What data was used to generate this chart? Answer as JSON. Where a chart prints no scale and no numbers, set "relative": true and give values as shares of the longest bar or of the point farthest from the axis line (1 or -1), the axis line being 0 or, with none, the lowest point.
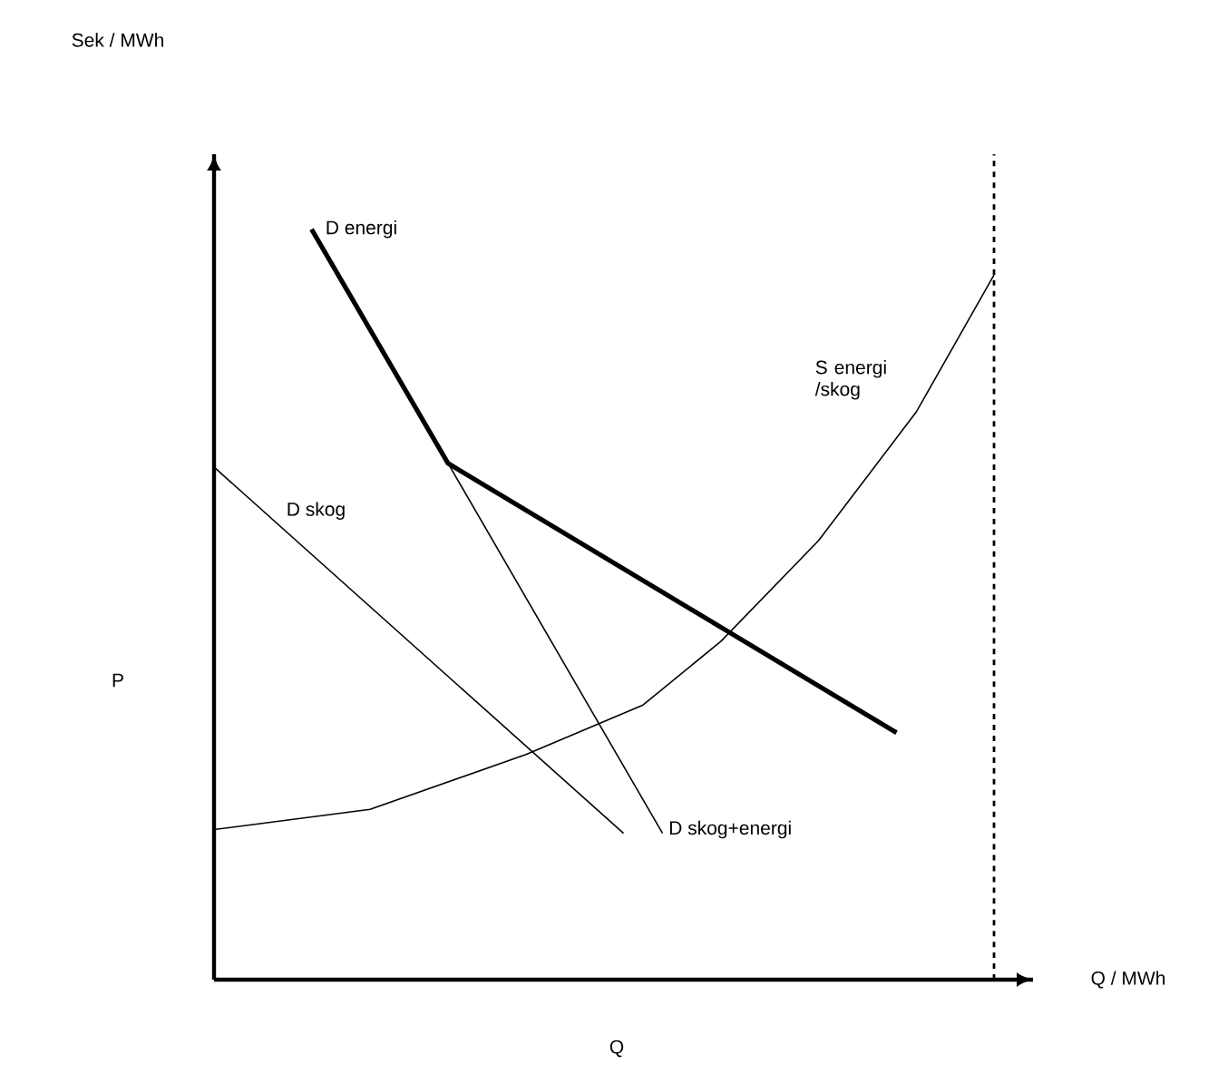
{
  "chart_data": {
    "type": "line",
    "relative": true,
    "xlabel": "Q",
    "ylabel": "P",
    "annotations": [
      "Sek / MWh",
      "Q / MWh"
    ],
    "categories": [
      null,
      null,
      null,
      null,
      null,
      null,
      null,
      null,
      null,
      null,
      null,
      null,
      null,
      null,
      null,
      null,
      null,
      null,
      null,
      null,
      null,
      null,
      null,
      null,
      null,
      null,
      null,
      null,
      null,
      null,
      null,
      null,
      null,
      null,
      null,
      null,
      null,
      null,
      null,
      null,
      null,
      null,
      null
    ],
    "series": [
      {
        "name": "D energi",
        "color": "#000000",
        "values": [
          null,
          null,
          null,
          null,
          null,
          1.0,
          null,
          null,
          null,
          null,
          null,
          null,
          0.688,
          null,
          null,
          null,
          null,
          null,
          null,
          null,
          null,
          null,
          null,
          null,
          null,
          null,
          null,
          null,
          null,
          null,
          null,
          null,
          null,
          null,
          null,
          0.329,
          null,
          null,
          null,
          null,
          null,
          null,
          null
        ]
      },
      {
        "name": "D skog",
        "color": "#000000",
        "values": [
          0.683,
          null,
          null,
          null,
          null,
          null,
          null,
          null,
          null,
          null,
          null,
          null,
          null,
          null,
          null,
          null,
          null,
          null,
          null,
          null,
          null,
          0.195,
          null,
          null,
          null,
          null,
          null,
          null,
          null,
          null,
          null,
          null,
          null,
          null,
          null,
          null,
          null,
          null,
          null,
          null,
          null,
          null,
          null
        ]
      },
      {
        "name": "D skog+energi",
        "color": "#000000",
        "values": [
          null,
          null,
          null,
          null,
          null,
          null,
          null,
          null,
          null,
          null,
          null,
          null,
          0.688,
          null,
          null,
          null,
          null,
          null,
          null,
          null,
          null,
          null,
          null,
          0.195,
          null,
          null,
          null,
          null,
          null,
          null,
          null,
          null,
          null,
          null,
          null,
          null,
          null,
          null,
          null,
          null,
          null,
          null,
          null
        ]
      },
      {
        "name": "S energi /skog",
        "color": "#000000",
        "values": [
          0.2,
          null,
          null,
          null,
          null,
          null,
          null,
          null,
          0.227,
          null,
          null,
          null,
          null,
          null,
          null,
          null,
          0.3,
          null,
          null,
          null,
          null,
          null,
          0.366,
          null,
          null,
          null,
          0.451,
          null,
          null,
          null,
          null,
          0.585,
          null,
          null,
          null,
          null,
          0.756,
          null,
          null,
          null,
          0.939,
          null,
          null
        ]
      }
    ],
    "marker": "none",
    "line_style": "solid"
  }
}
